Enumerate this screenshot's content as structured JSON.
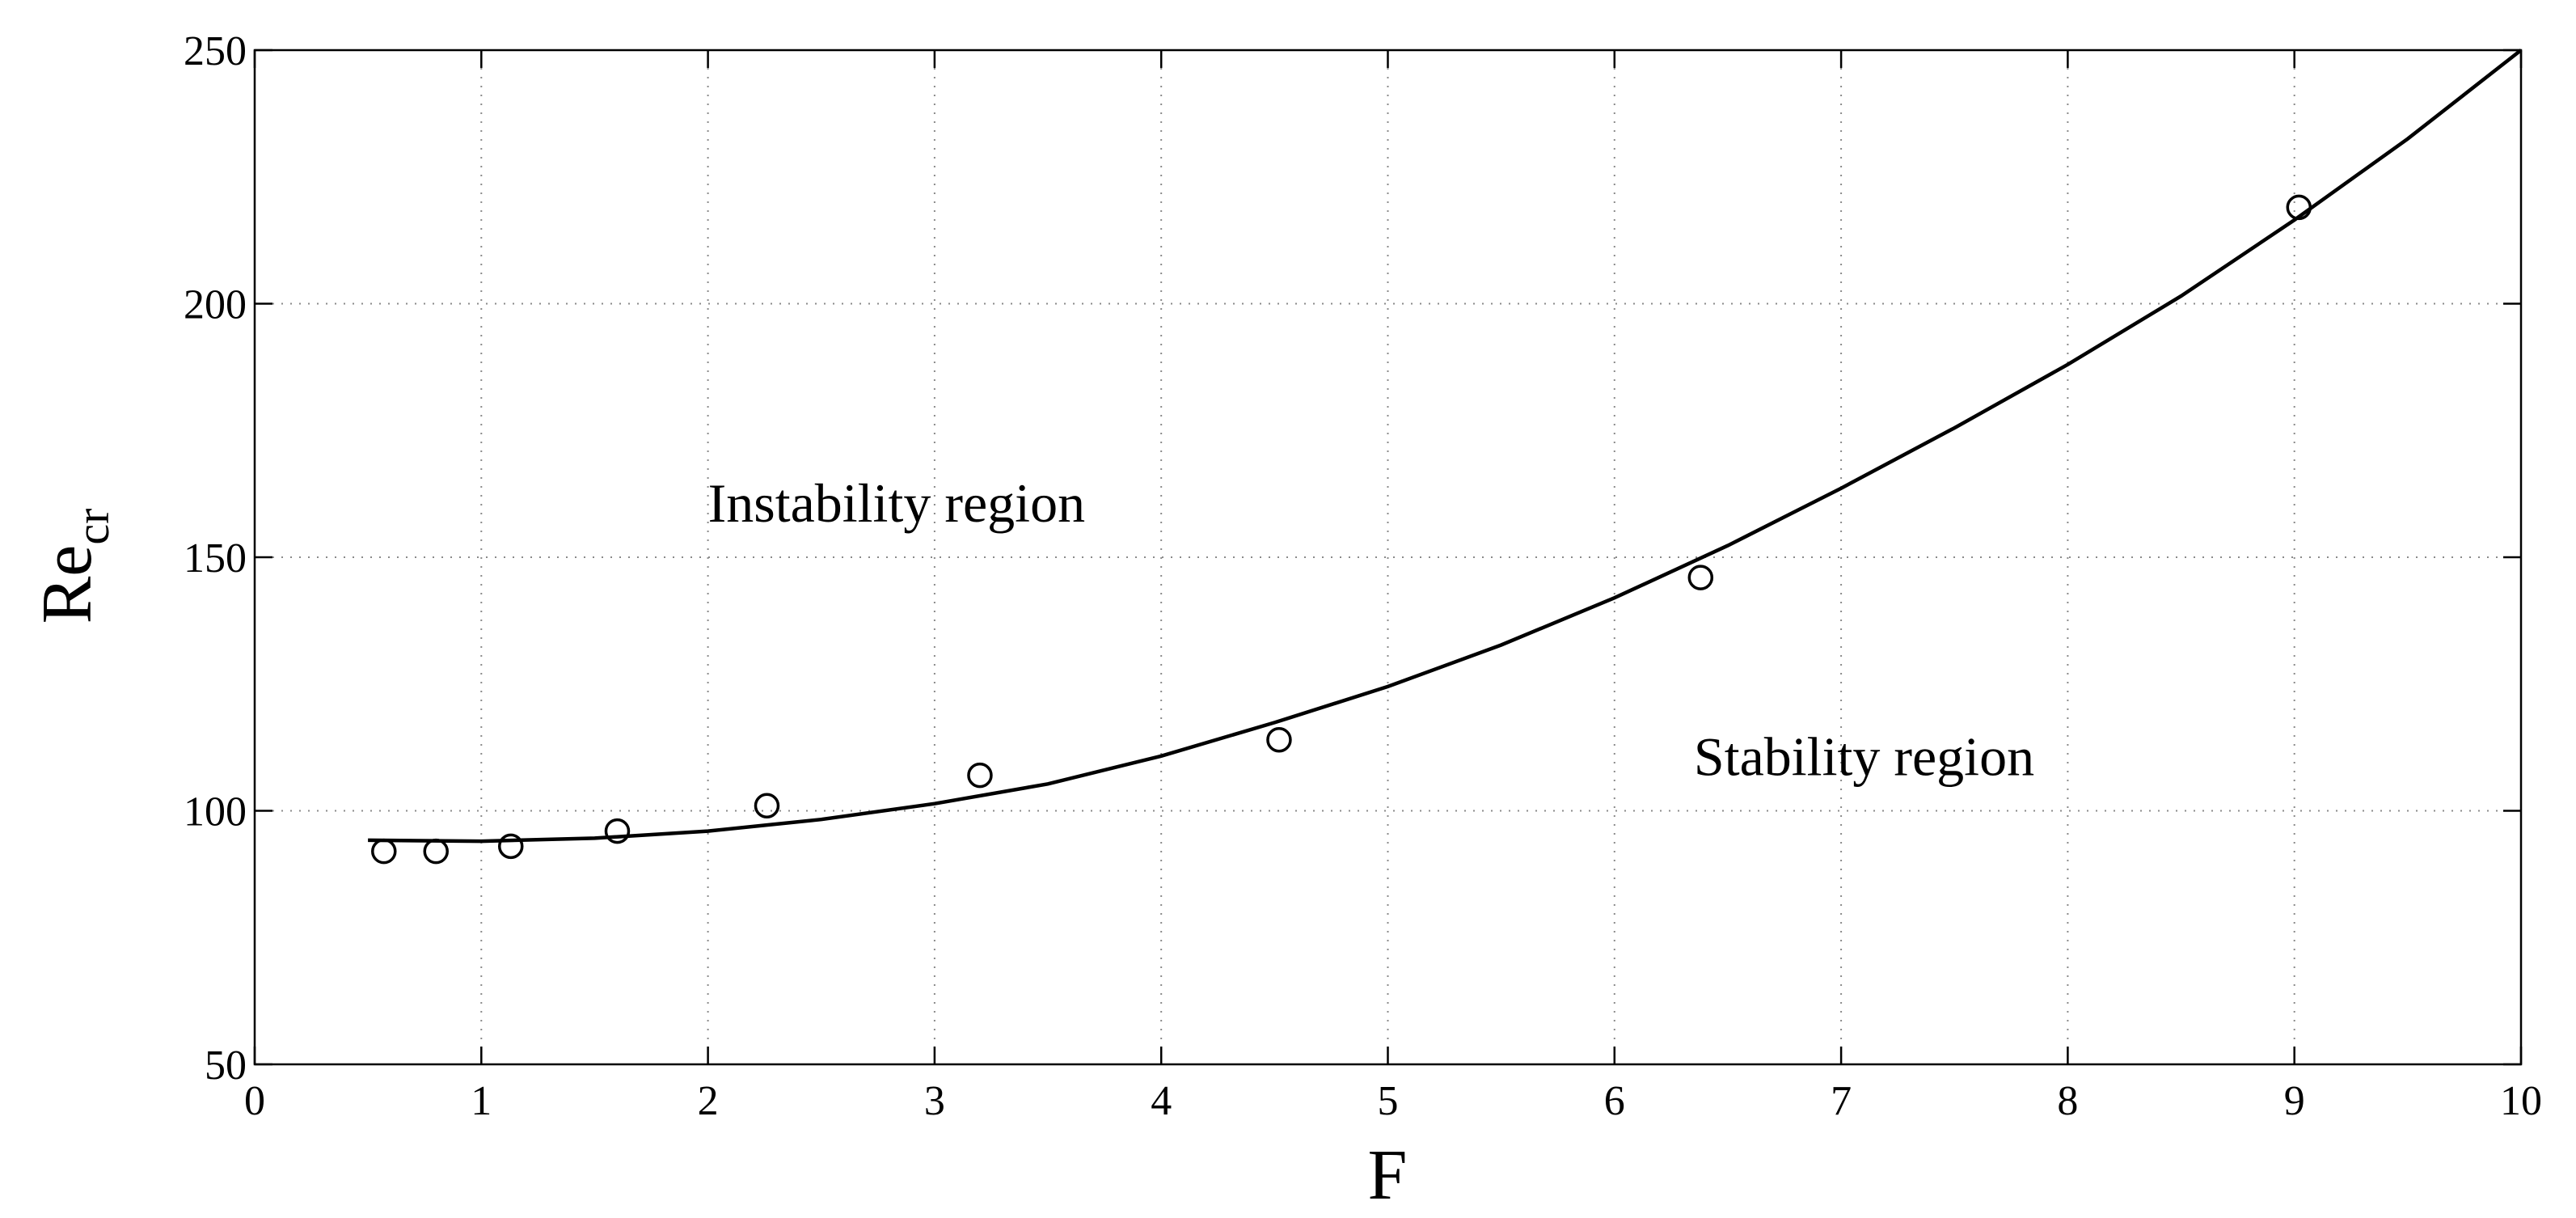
{
  "chart_data": {
    "type": "scatter",
    "title": "",
    "xlabel": "F",
    "ylabel": {
      "main": "Re",
      "sub": "cr"
    },
    "xlim": [
      0,
      10
    ],
    "ylim": [
      50,
      250
    ],
    "xticks": [
      0,
      1,
      2,
      3,
      4,
      5,
      6,
      7,
      8,
      9,
      10
    ],
    "yticks": [
      50,
      100,
      150,
      200,
      250
    ],
    "grid": true,
    "series": [
      {
        "kind": "markers",
        "marker": "circle",
        "x": [
          0.57,
          0.8,
          1.13,
          1.6,
          2.26,
          3.2,
          4.52,
          6.38,
          9.02
        ],
        "y": [
          92,
          92,
          93,
          96,
          101,
          107,
          114,
          146,
          219
        ]
      },
      {
        "kind": "line",
        "x": [
          0.5,
          1.0,
          1.5,
          2.0,
          2.5,
          3.0,
          3.5,
          4.0,
          4.5,
          5.0,
          5.5,
          6.0,
          6.5,
          7.0,
          7.5,
          8.0,
          8.5,
          9.0,
          9.5,
          10.0
        ],
        "y": [
          94.2,
          94.0,
          94.6,
          96.0,
          98.3,
          101.4,
          105.3,
          110.8,
          117.4,
          124.5,
          132.7,
          142.0,
          152.3,
          163.6,
          175.5,
          188.0,
          201.5,
          216.5,
          232.5,
          250.0
        ]
      }
    ],
    "annotations": [
      {
        "text": "Instability region",
        "x": 2.0,
        "y": 157
      },
      {
        "text": "Stability region",
        "x": 6.35,
        "y": 107
      }
    ]
  }
}
